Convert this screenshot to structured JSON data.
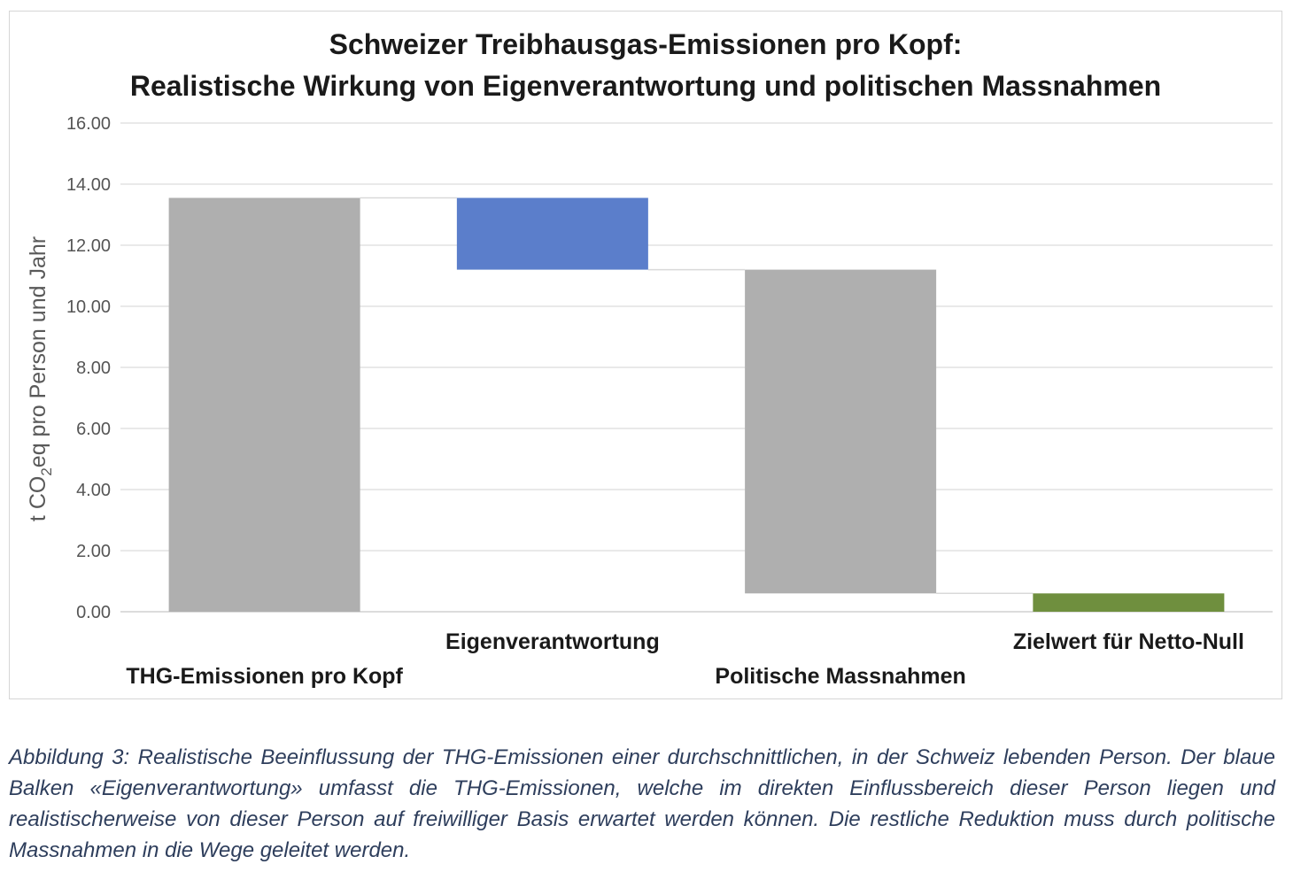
{
  "chart_data": {
    "type": "bar",
    "subtype": "waterfall",
    "title_lines": [
      "Schweizer Treibhausgas-Emissionen pro Kopf:",
      "Realistische Wirkung von Eigenverantwortung und politischen Massnahmen"
    ],
    "ylabel_prefix": "t CO",
    "ylabel_sub": "2",
    "ylabel_suffix": "eq  pro Person und Jahr",
    "ylim": [
      0,
      16
    ],
    "yticks": [
      "0.00",
      "2.00",
      "4.00",
      "6.00",
      "8.00",
      "10.00",
      "12.00",
      "14.00",
      "16.00"
    ],
    "grid": true,
    "categories": [
      "THG-Emissionen pro Kopf",
      "Eigenverantwortung",
      "Politische Massnahmen",
      "Zielwert für Netto-Null"
    ],
    "bars": [
      {
        "start": 0,
        "end": 13.55,
        "color": "#afafaf"
      },
      {
        "start": 11.2,
        "end": 13.55,
        "color": "#5b7ecb"
      },
      {
        "start": 0.6,
        "end": 11.2,
        "color": "#afafaf"
      },
      {
        "start": 0,
        "end": 0.6,
        "color": "#6f8f3e"
      }
    ]
  },
  "caption": "Abbildung 3: Realistische Beeinflussung der THG-Emissionen einer durchschnittlichen, in der Schweiz lebenden Person. Der blaue Balken «Eigenverantwortung» umfasst die THG-Emissionen, welche im direkten Einflussbereich dieser Person liegen und realistischerweise von dieser Person auf freiwilliger Basis erwartet werden können. Die restliche Reduktion muss durch politische Massnahmen in die Wege geleitet werden."
}
